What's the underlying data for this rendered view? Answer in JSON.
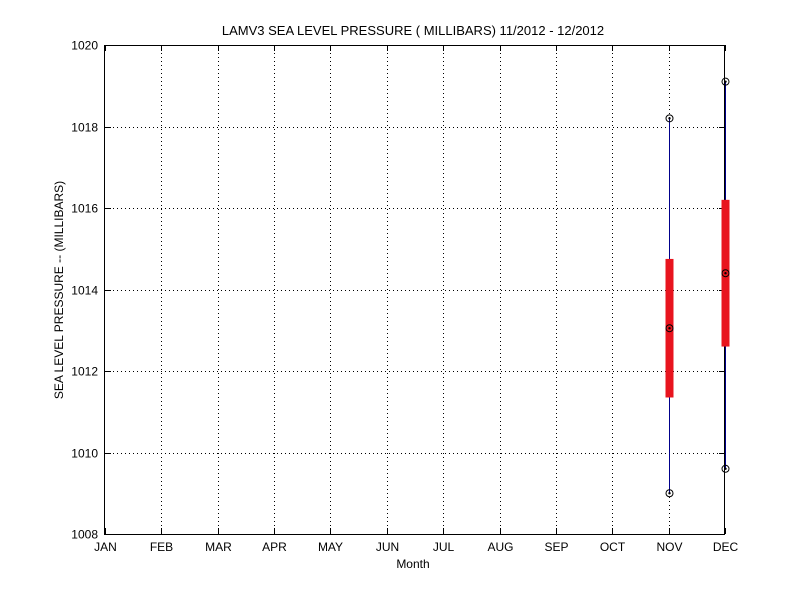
{
  "chart_data": {
    "type": "box",
    "title": "LAMV3  SEA LEVEL PRESSURE ( MILLIBARS) 11/2012 - 12/2012",
    "xlabel": "Month",
    "ylabel": "SEA LEVEL PRESSURE -- (MILLIBARS)",
    "categories": [
      "JAN",
      "FEB",
      "MAR",
      "APR",
      "MAY",
      "JUN",
      "JUL",
      "AUG",
      "SEP",
      "OCT",
      "NOV",
      "DEC"
    ],
    "ylim": [
      1008,
      1020
    ],
    "yticks": [
      1008,
      1010,
      1012,
      1014,
      1016,
      1018,
      1020
    ],
    "grid": true,
    "colors": {
      "whisker": "#00008b",
      "box": "#e8141e",
      "marker": "#000000",
      "grid": "#000000"
    },
    "boxes": [
      {
        "category": "NOV",
        "min": 1009.0,
        "q1": 1011.35,
        "median": 1013.05,
        "q3": 1014.75,
        "max": 1018.2
      },
      {
        "category": "DEC",
        "min": 1009.6,
        "q1": 1012.6,
        "median": 1014.4,
        "q3": 1016.2,
        "max": 1019.1
      }
    ]
  }
}
